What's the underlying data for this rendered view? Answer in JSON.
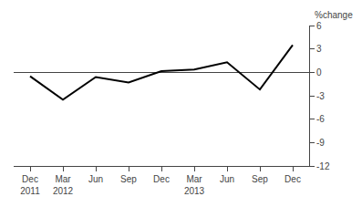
{
  "chart_data": {
    "type": "line",
    "ylabel": "%change",
    "categories": [
      "Dec\n2011",
      "Mar\n2012",
      "Jun",
      "Sep",
      "Dec",
      "Mar\n2013",
      "Jun",
      "Sep",
      "Dec"
    ],
    "values": [
      -0.5,
      -3.5,
      -0.6,
      -1.3,
      0.15,
      0.35,
      1.3,
      -2.2,
      3.5
    ],
    "color": "#000000",
    "ylim": [
      -12,
      6
    ],
    "yticks": [
      6,
      3,
      0,
      -3,
      -6,
      -9,
      -12
    ],
    "grid": false
  }
}
